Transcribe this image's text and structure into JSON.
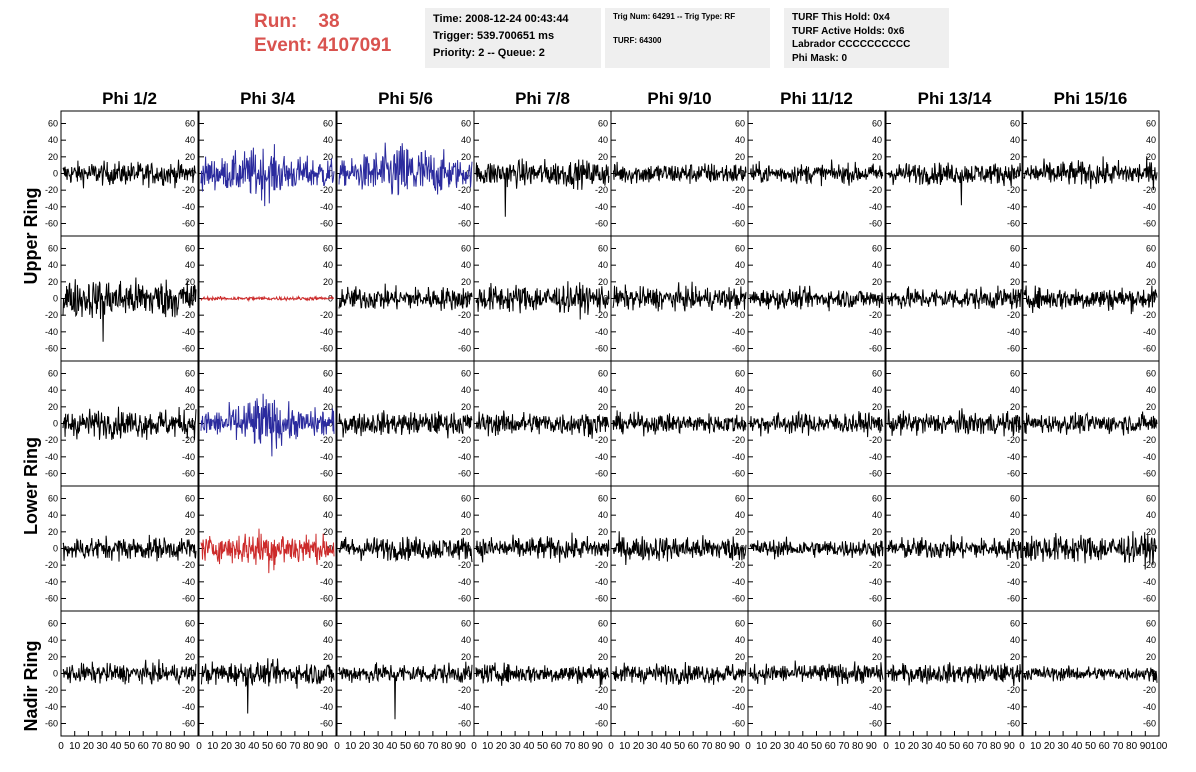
{
  "header": {
    "run_label": "Run:",
    "run_value": "38",
    "event_label": "Event:",
    "event_value": "4107091",
    "time": "Time: 2008-12-24 00:43:44",
    "trigger": "Trigger: 539.700651 ms",
    "priority": "Priority: 2 -- Queue: 2",
    "trig_num": "Trig Num: 64291 -- Trig Type: RF",
    "turf": "TURF: 64300",
    "turf_this_hold": "TURF This Hold: 0x4",
    "turf_active_holds": "TURF Active Holds: 0x6",
    "labrador": "Labrador CCCCCCCCCC",
    "phi_mask": "Phi Mask: 0"
  },
  "colors": {
    "default": "#000000",
    "blue": "#2b2b9e",
    "red": "#cc2b2b",
    "header_red": "#d9534f",
    "box_bg": "#efefef"
  },
  "chart_data": {
    "type": "line",
    "columns": [
      "Phi 1/2",
      "Phi 3/4",
      "Phi 5/6",
      "Phi 7/8",
      "Phi 9/10",
      "Phi 11/12",
      "Phi 13/14",
      "Phi 15/16"
    ],
    "ring_labels": [
      "Upper Ring",
      "Lower Ring",
      "Nadir Ring"
    ],
    "rows": 5,
    "ylim": [
      -75,
      75
    ],
    "yticks": [
      -60,
      -40,
      -20,
      0,
      20,
      40,
      60
    ],
    "xlim": [
      0,
      100
    ],
    "xticks": [
      0,
      10,
      20,
      30,
      40,
      50,
      60,
      70,
      80,
      90,
      100
    ],
    "samples": 260,
    "panels": [
      [
        {
          "amp": 13,
          "spike": [
            [
              "0.6",
              "-14"
            ]
          ]
        },
        {
          "amp": 18,
          "color": "blue",
          "burst": [
            0.18,
            0.72
          ],
          "peak": 42
        },
        {
          "amp": 14,
          "color": "blue",
          "burst": [
            0.05,
            0.95
          ],
          "peak": 55
        },
        {
          "amp": 15,
          "spike": [
            [
              "0.22",
              "-52"
            ]
          ]
        },
        {
          "amp": 12
        },
        {
          "amp": 11
        },
        {
          "amp": 12,
          "spike": [
            [
              "0.55",
              "-38"
            ]
          ]
        },
        {
          "amp": 14
        }
      ],
      [
        {
          "amp": 22,
          "spike": [
            [
              "0.3",
              "-52"
            ]
          ]
        },
        {
          "amp": 2,
          "color": "red"
        },
        {
          "amp": 13
        },
        {
          "amp": 16
        },
        {
          "amp": 13
        },
        {
          "amp": 11
        },
        {
          "amp": 12
        },
        {
          "amp": 13
        }
      ],
      [
        {
          "amp": 16
        },
        {
          "amp": 16,
          "color": "blue",
          "burst": [
            0.18,
            0.72
          ],
          "peak": 50
        },
        {
          "amp": 13
        },
        {
          "amp": 13
        },
        {
          "amp": 11
        },
        {
          "amp": 12
        },
        {
          "amp": 13
        },
        {
          "amp": 11
        }
      ],
      [
        {
          "amp": 13
        },
        {
          "amp": 14,
          "color": "red",
          "burst": [
            0.12,
            0.9
          ],
          "peak": 32
        },
        {
          "amp": 13
        },
        {
          "amp": 13
        },
        {
          "amp": 14
        },
        {
          "amp": 10
        },
        {
          "amp": 12
        },
        {
          "amp": 16
        }
      ],
      [
        {
          "amp": 11
        },
        {
          "amp": 13,
          "spike": [
            [
              "0.35",
              "-48"
            ]
          ]
        },
        {
          "amp": 11,
          "spike": [
            [
              "0.42",
              "-55"
            ]
          ]
        },
        {
          "amp": 11
        },
        {
          "amp": 11
        },
        {
          "amp": 11
        },
        {
          "amp": 11
        },
        {
          "amp": 8
        }
      ]
    ]
  }
}
